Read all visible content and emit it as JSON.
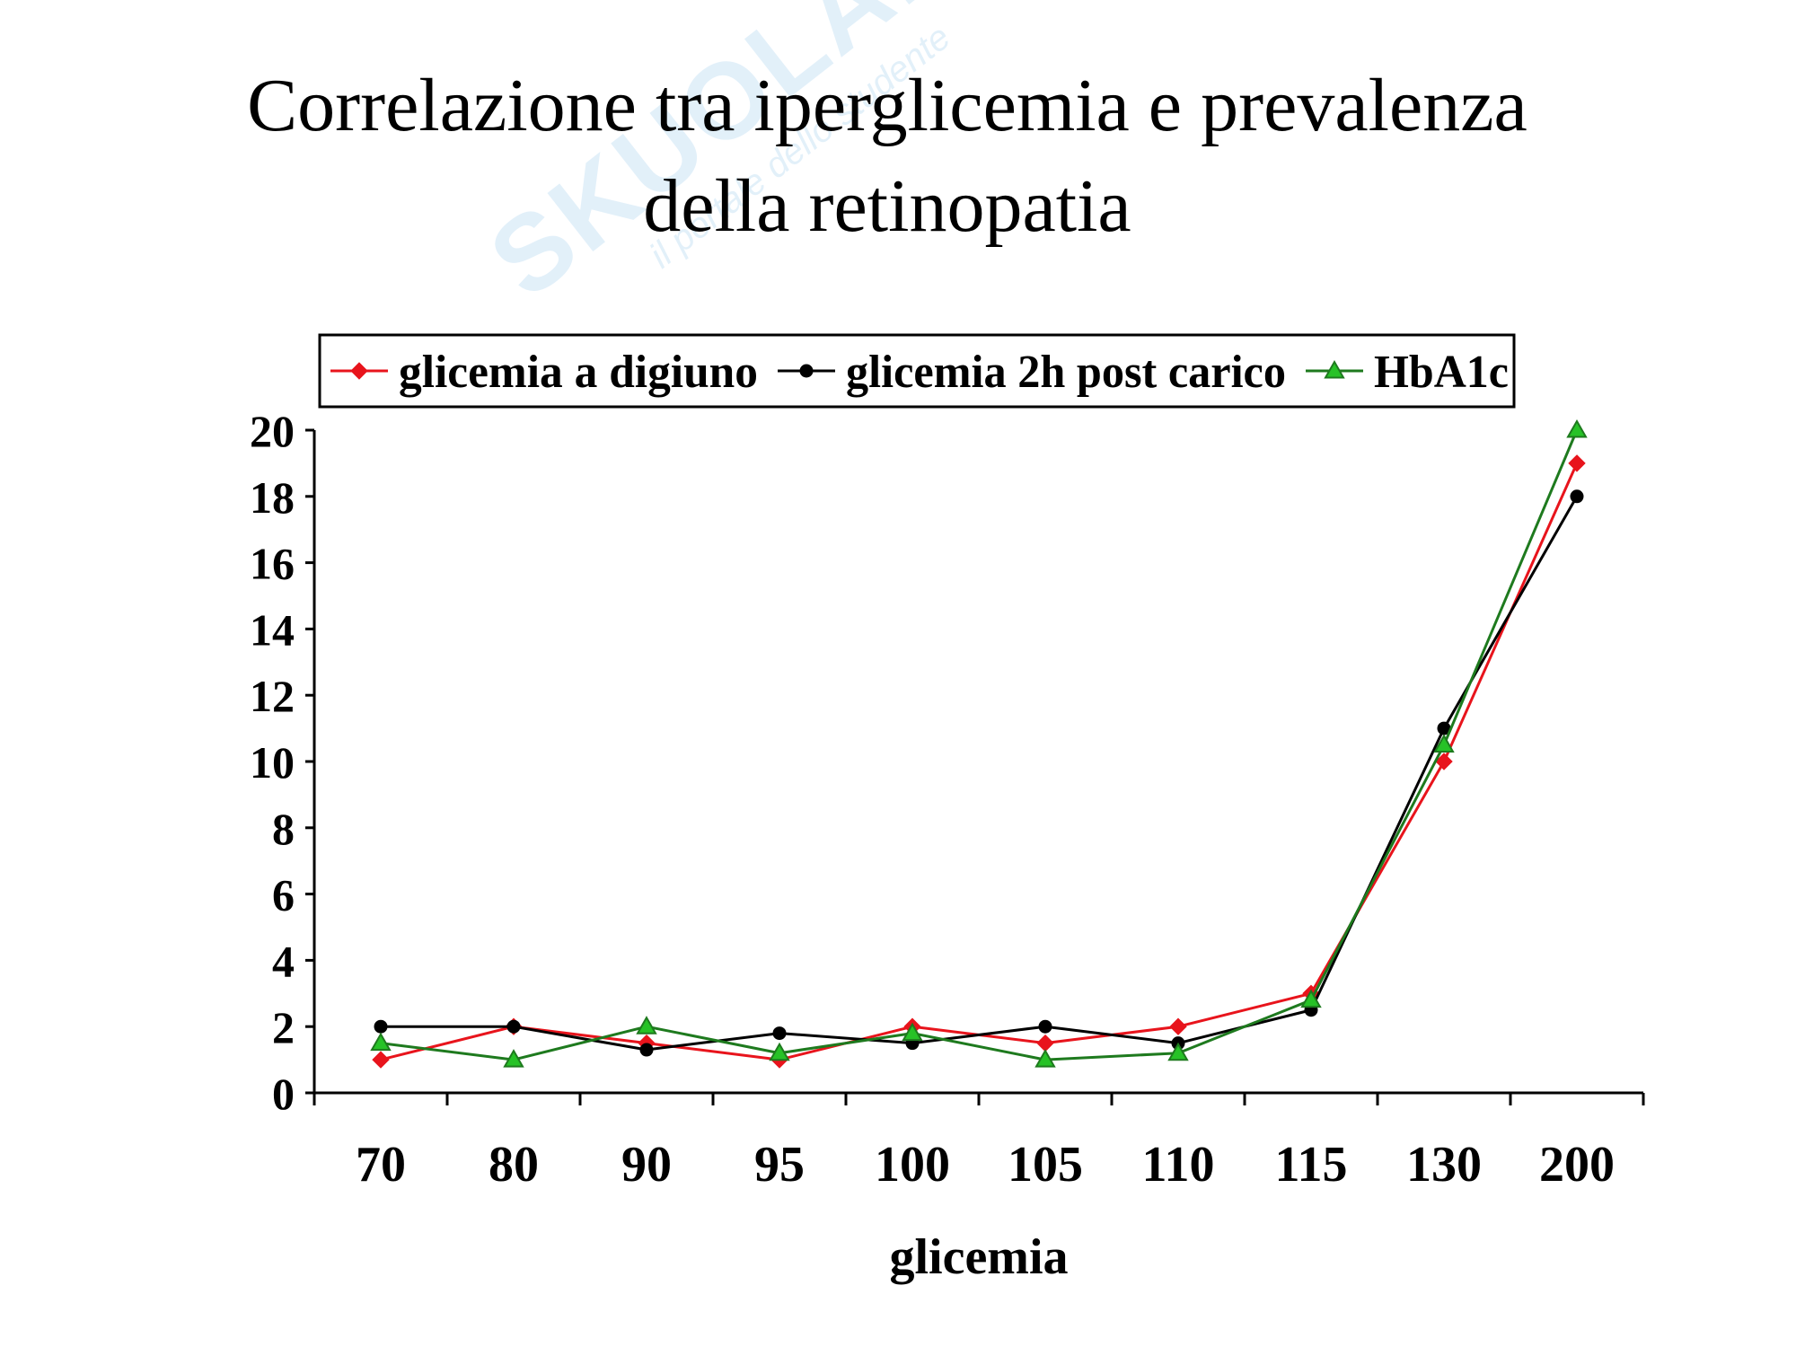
{
  "slide": {
    "title_line1": "Correlazione tra iperglicemia e prevalenza",
    "title_line2": "della retinopatia"
  },
  "watermark": {
    "brand": "SKUOLA.net",
    "tagline": "il portale dello studente"
  },
  "chart_data": {
    "type": "line",
    "title": "",
    "xlabel": "glicemia",
    "ylabel": "",
    "categories": [
      "70",
      "80",
      "90",
      "95",
      "100",
      "105",
      "110",
      "115",
      "130",
      "200"
    ],
    "ylim": [
      0,
      20
    ],
    "yticks": [
      0,
      2,
      4,
      6,
      8,
      10,
      12,
      14,
      16,
      18,
      20
    ],
    "grid": false,
    "legend_position": "top",
    "series": [
      {
        "name": "glicemia a digiuno",
        "color": "#e8141c",
        "marker": "diamond",
        "values": [
          1,
          2,
          1.5,
          1,
          2,
          1.5,
          2,
          3,
          10,
          19
        ]
      },
      {
        "name": "glicemia 2h post carico",
        "color": "#000000",
        "marker": "circle",
        "values": [
          2,
          2,
          1.3,
          1.8,
          1.5,
          2,
          1.5,
          2.5,
          11,
          18
        ]
      },
      {
        "name": "HbA1c",
        "color": "#1e7a1e",
        "marker": "triangle",
        "values": [
          1.5,
          1,
          2,
          1.2,
          1.8,
          1,
          1.2,
          2.8,
          10.5,
          20
        ]
      }
    ]
  }
}
